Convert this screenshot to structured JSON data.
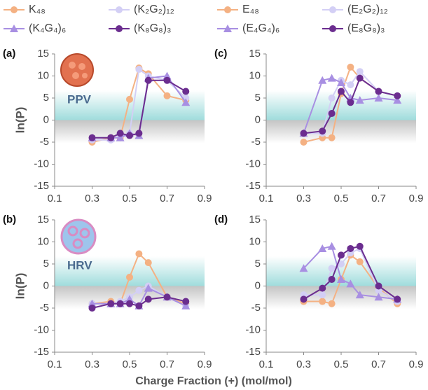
{
  "chart_data": [
    {
      "type": "line",
      "panel_label": "(a)",
      "annotation": "PPV",
      "ylabel": "ln(P)",
      "xlim": [
        0.1,
        0.9
      ],
      "xticks": [
        0.1,
        0.3,
        0.5,
        0.7,
        0.9
      ],
      "ylim": [
        -15,
        15
      ],
      "yticks": [
        -15,
        -10,
        -5,
        0,
        5,
        10,
        15
      ],
      "x": [
        0.3,
        0.4,
        0.45,
        0.5,
        0.55,
        0.6,
        0.7,
        0.8
      ],
      "series": [
        {
          "name": "K₄₈",
          "color": "#f4b183",
          "marker": "circle",
          "values": [
            -5,
            -4,
            -4,
            4.7,
            11.8,
            10.5,
            5.5,
            4.5
          ]
        },
        {
          "name": "(K₂G₂)₁₂",
          "color": "#d3cff5",
          "marker": "circle",
          "values": [
            -4.5,
            -4.5,
            -3.5,
            -3,
            11.5,
            10,
            9,
            5
          ]
        },
        {
          "name": "(K₄G₄)₆",
          "color": "#a88fe2",
          "marker": "triangle",
          "values": [
            -4,
            -4,
            -4,
            -3,
            -3.5,
            9.5,
            10,
            4
          ]
        },
        {
          "name": "(K₈G₈)₃",
          "color": "#6b2d8f",
          "marker": "circle",
          "values": [
            -4,
            -4,
            -3,
            -3.5,
            -3,
            9,
            9,
            6.5
          ]
        }
      ]
    },
    {
      "type": "line",
      "panel_label": "(b)",
      "annotation": "HRV",
      "ylabel": "ln(P)",
      "xlabel": "Charge Fraction (+) (mol/mol)",
      "xlim": [
        0.1,
        0.9
      ],
      "xticks": [
        0.1,
        0.3,
        0.5,
        0.7,
        0.9
      ],
      "ylim": [
        -15,
        15
      ],
      "yticks": [
        -15,
        -10,
        -5,
        0,
        5,
        10,
        15
      ],
      "x": [
        0.3,
        0.4,
        0.45,
        0.5,
        0.55,
        0.6,
        0.7,
        0.8
      ],
      "series": [
        {
          "color": "#f4b183",
          "marker": "circle",
          "values": [
            -4,
            -3.5,
            -4,
            2,
            7.3,
            5.3,
            -2.5,
            -4
          ]
        },
        {
          "color": "#d3cff5",
          "marker": "circle",
          "values": [
            -4,
            -4,
            -3.5,
            -2.5,
            -1,
            0,
            -2.5,
            -4.5
          ]
        },
        {
          "color": "#a88fe2",
          "marker": "triangle",
          "values": [
            -4,
            -4,
            -4,
            -3,
            -4.5,
            -0.5,
            -2.5,
            -4.5
          ]
        },
        {
          "color": "#6b2d8f",
          "marker": "circle",
          "values": [
            -5,
            -4,
            -4,
            -4,
            -4.5,
            -3,
            -2.5,
            -3.5
          ]
        }
      ]
    },
    {
      "type": "line",
      "panel_label": "(c)",
      "xlim": [
        0.1,
        0.9
      ],
      "xticks": [
        0.1,
        0.3,
        0.5,
        0.7,
        0.9
      ],
      "ylim": [
        -15,
        15
      ],
      "yticks": [
        -15,
        -10,
        -5,
        0,
        5,
        10,
        15
      ],
      "x": [
        0.3,
        0.4,
        0.45,
        0.5,
        0.55,
        0.6,
        0.7,
        0.8
      ],
      "series": [
        {
          "name": "E₄₈",
          "color": "#f4b183",
          "marker": "circle",
          "values": [
            -5,
            -4,
            -4,
            6,
            12,
            9.5,
            6.5,
            5.5
          ]
        },
        {
          "name": "(E₂G₂)₁₂",
          "color": "#d3cff5",
          "marker": "circle",
          "values": [
            -3,
            -3,
            5,
            9,
            8,
            11,
            6.5,
            5.5
          ]
        },
        {
          "name": "(E₄G₄)₆",
          "color": "#a88fe2",
          "marker": "triangle",
          "values": [
            -3,
            9,
            9.5,
            8.5,
            5,
            4.5,
            5,
            4.5
          ]
        },
        {
          "name": "(E₈G₈)₃",
          "color": "#6b2d8f",
          "marker": "circle",
          "values": [
            -3,
            -2.5,
            1.5,
            6.5,
            4,
            9.5,
            6.5,
            5.5
          ]
        }
      ]
    },
    {
      "type": "line",
      "panel_label": "(d)",
      "xlim": [
        0.1,
        0.9
      ],
      "xticks": [
        0.1,
        0.3,
        0.5,
        0.7,
        0.9
      ],
      "ylim": [
        -15,
        15
      ],
      "yticks": [
        -15,
        -10,
        -5,
        0,
        5,
        10,
        15
      ],
      "x": [
        0.3,
        0.4,
        0.45,
        0.5,
        0.55,
        0.6,
        0.7,
        0.8
      ],
      "series": [
        {
          "color": "#f4b183",
          "marker": "circle",
          "values": [
            -3.5,
            -3.5,
            -4,
            1.5,
            7,
            5.5,
            -0.5,
            -4
          ]
        },
        {
          "color": "#d3cff5",
          "marker": "circle",
          "values": [
            -2,
            -2,
            4,
            5,
            7.5,
            8.5,
            -1,
            -3.5
          ]
        },
        {
          "color": "#a88fe2",
          "marker": "triangle",
          "values": [
            4,
            8.5,
            9,
            1.5,
            0.5,
            -2,
            -2.5,
            -3
          ]
        },
        {
          "color": "#6b2d8f",
          "marker": "circle",
          "values": [
            -3,
            -0.5,
            1.5,
            7,
            8.5,
            9,
            0,
            -3
          ]
        }
      ]
    }
  ]
}
